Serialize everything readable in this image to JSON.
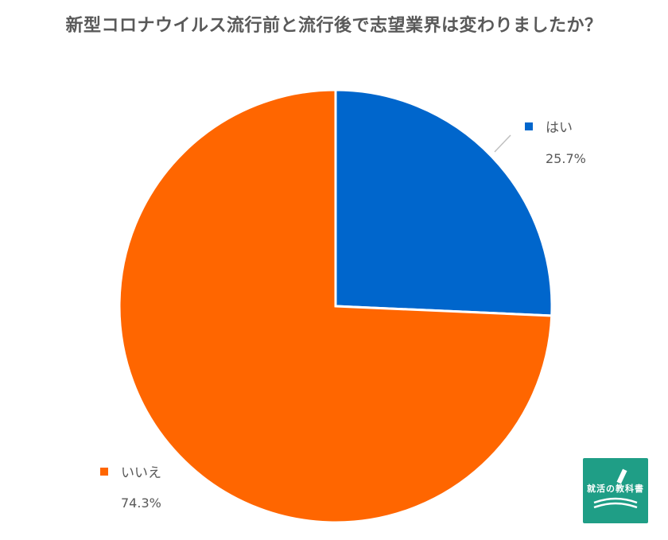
{
  "chart_data": {
    "type": "pie",
    "title": "新型コロナウイルス流行前と流行後で志望業界は変わりましたか？",
    "slices": [
      {
        "label": "はい",
        "value": 25.7,
        "value_label": "25.7%",
        "color": "#0066cc"
      },
      {
        "label": "いいえ",
        "value": 74.3,
        "value_label": "74.3%",
        "color": "#ff6600"
      }
    ],
    "start_angle": "12 o'clock",
    "direction": "clockwise"
  },
  "logo": {
    "text": "就活の教科書",
    "color": "#1f9e86"
  }
}
